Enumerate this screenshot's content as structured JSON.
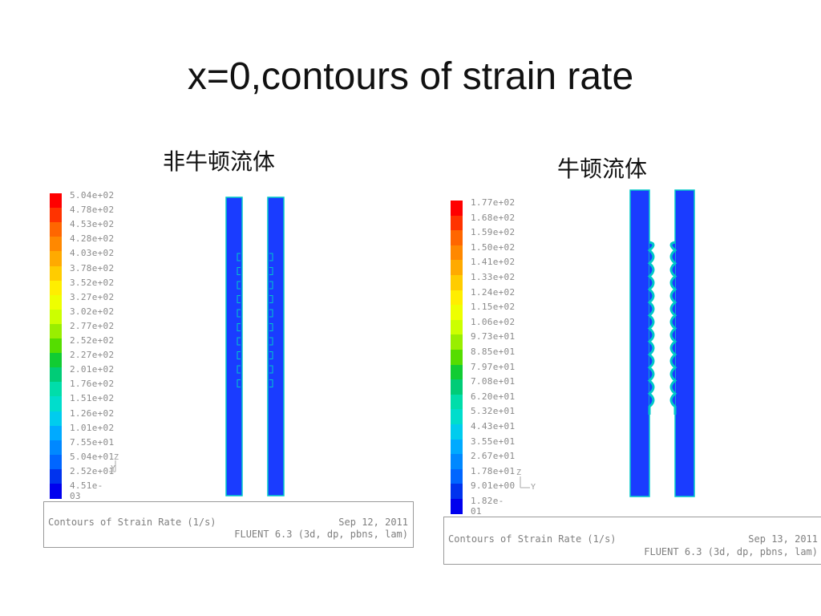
{
  "slide": {
    "title": "x=0,contours of strain rate"
  },
  "panels": [
    {
      "heading": "非牛顿流体",
      "colorbar": [
        "5.04e+02",
        "4.78e+02",
        "4.53e+02",
        "4.28e+02",
        "4.03e+02",
        "3.78e+02",
        "3.52e+02",
        "3.27e+02",
        "3.02e+02",
        "2.77e+02",
        "2.52e+02",
        "2.27e+02",
        "2.01e+02",
        "1.76e+02",
        "1.51e+02",
        "1.26e+02",
        "1.01e+02",
        "7.55e+01",
        "5.04e+01",
        "2.52e+01",
        "4.51e-03"
      ],
      "footer_left": "Contours of Strain Rate (1/s)",
      "footer_date": "Sep 12, 2011",
      "footer_solver": "FLUENT 6.3 (3d, dp, pbns, lam)",
      "axis_z": "Z",
      "axis_y": "Y"
    },
    {
      "heading": "牛顿流体",
      "colorbar": [
        "1.77e+02",
        "1.68e+02",
        "1.59e+02",
        "1.50e+02",
        "1.41e+02",
        "1.33e+02",
        "1.24e+02",
        "1.15e+02",
        "1.06e+02",
        "9.73e+01",
        "8.85e+01",
        "7.97e+01",
        "7.08e+01",
        "6.20e+01",
        "5.32e+01",
        "4.43e+01",
        "3.55e+01",
        "2.67e+01",
        "1.78e+01",
        "9.01e+00",
        "1.82e-01"
      ],
      "footer_left": "Contours of Strain Rate (1/s)",
      "footer_date": "Sep 13, 2011",
      "footer_solver": "FLUENT 6.3 (3d, dp, pbns, lam)",
      "axis_z": "Z",
      "axis_y": "Y"
    }
  ],
  "colors": {
    "scale": [
      "#ff0000",
      "#ff3300",
      "#ff6600",
      "#ff8800",
      "#ffaa00",
      "#ffcc00",
      "#ffee00",
      "#eeff00",
      "#ccff00",
      "#99ee00",
      "#55dd00",
      "#11cc33",
      "#00cc77",
      "#00ddaa",
      "#00ddcc",
      "#00ccee",
      "#00aaff",
      "#0088ff",
      "#0066ff",
      "#0033ee",
      "#0000ee"
    ],
    "contour_fill": "#1a3cff",
    "contour_edge": "#00c8c8"
  }
}
